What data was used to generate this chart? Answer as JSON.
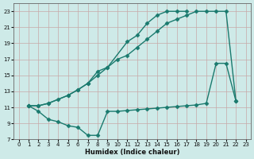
{
  "line1_x": [
    1,
    2,
    3,
    5,
    6,
    7,
    8,
    9,
    11,
    12,
    13,
    14,
    15,
    16,
    17
  ],
  "line1_y": [
    11.2,
    11.2,
    11.5,
    12.5,
    13.2,
    14.0,
    15.0,
    16.0,
    19.2,
    20.0,
    21.5,
    22.5,
    23.0,
    23.0,
    23.0
  ],
  "line2_x": [
    1,
    2,
    3,
    4,
    5,
    6,
    7,
    8,
    9,
    10,
    11,
    12,
    13,
    14,
    15,
    16,
    17,
    18,
    19,
    20,
    21,
    22
  ],
  "line2_y": [
    11.2,
    11.2,
    11.5,
    12.0,
    12.5,
    13.2,
    14.0,
    15.5,
    16.0,
    17.0,
    17.5,
    18.5,
    19.5,
    20.5,
    21.5,
    22.0,
    22.5,
    23.0,
    23.0,
    23.0,
    23.0,
    11.8
  ],
  "line3_x": [
    1,
    2,
    3,
    4,
    5,
    6,
    7,
    8,
    9,
    10,
    11,
    12,
    13,
    14,
    15,
    16,
    17,
    18,
    19,
    20,
    21,
    22
  ],
  "line3_y": [
    11.2,
    10.5,
    9.5,
    9.2,
    8.7,
    8.5,
    7.5,
    7.5,
    10.5,
    10.5,
    10.6,
    10.7,
    10.8,
    10.9,
    11.0,
    11.1,
    11.2,
    11.3,
    11.5,
    16.5,
    16.5,
    11.8
  ],
  "line_color": "#1a7a6e",
  "bg_color": "#ceeae8",
  "grid_color": "#c8a8a8",
  "xlabel": "Humidex (Indice chaleur)",
  "xlim": [
    -0.5,
    23.5
  ],
  "ylim": [
    7,
    24
  ],
  "xticks": [
    0,
    1,
    2,
    3,
    4,
    5,
    6,
    7,
    8,
    9,
    10,
    11,
    12,
    13,
    14,
    15,
    16,
    17,
    18,
    19,
    20,
    21,
    22,
    23
  ],
  "yticks": [
    7,
    9,
    11,
    13,
    15,
    17,
    19,
    21,
    23
  ],
  "marker": "D",
  "markersize": 2.5,
  "linewidth": 1.0
}
